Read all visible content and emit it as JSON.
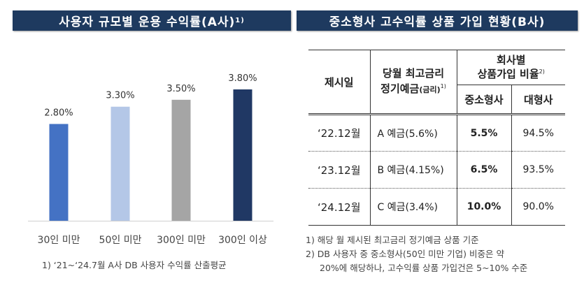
{
  "left": {
    "title": "사용자 규모별 운용 수익률(A사)",
    "title_sup": "1)",
    "footnote": "1) ‘21~‘24.7월 A사 DB  사용자 수익률 산출평균"
  },
  "chart_data": {
    "type": "bar",
    "categories": [
      "30인 미만",
      "50인 미만",
      "300인 미만",
      "300인 이상"
    ],
    "values": [
      2.8,
      3.3,
      3.5,
      3.8
    ],
    "value_labels": [
      "2.80%",
      "3.30%",
      "3.50%",
      "3.80%"
    ],
    "colors": [
      "#4472c4",
      "#b4c7e7",
      "#a5a5a5",
      "#203864"
    ],
    "ylim": [
      0,
      3.8
    ],
    "grid": false
  },
  "right": {
    "title": "중소형사 고수익률 상품 가입 현황(B사)",
    "headers": {
      "date": "제시일",
      "product_1": "당월 최고금리",
      "product_2": "정기예금",
      "product_small": "(금리)",
      "product_sup": "1)",
      "ratio_1": "회사별",
      "ratio_2": "상품가입 비율",
      "ratio_sup": "2)",
      "small": "중소형사",
      "large": "대형사"
    },
    "rows": [
      {
        "date": "‘22.12월",
        "product": "A 예금(5.6%)",
        "small": "5.5%",
        "large": "94.5%"
      },
      {
        "date": "‘23.12월",
        "product": "B 예금(4.15%)",
        "small": "6.5%",
        "large": "93.5%"
      },
      {
        "date": "‘24.12월",
        "product": "C 예금(3.4%)",
        "small": "10.0%",
        "large": "90.0%"
      }
    ],
    "footnotes": [
      "1) 해당 월 제시된 최고금리 정기예금 상품 기준",
      "2) DB 사용자 중 중소형사(50인 미만 기업) 비중은 약",
      "20%에 해당하나, 고수익률 상품 가입건은 5~10% 수준"
    ]
  },
  "colors": {
    "title_bar": "#1e3a5f"
  }
}
